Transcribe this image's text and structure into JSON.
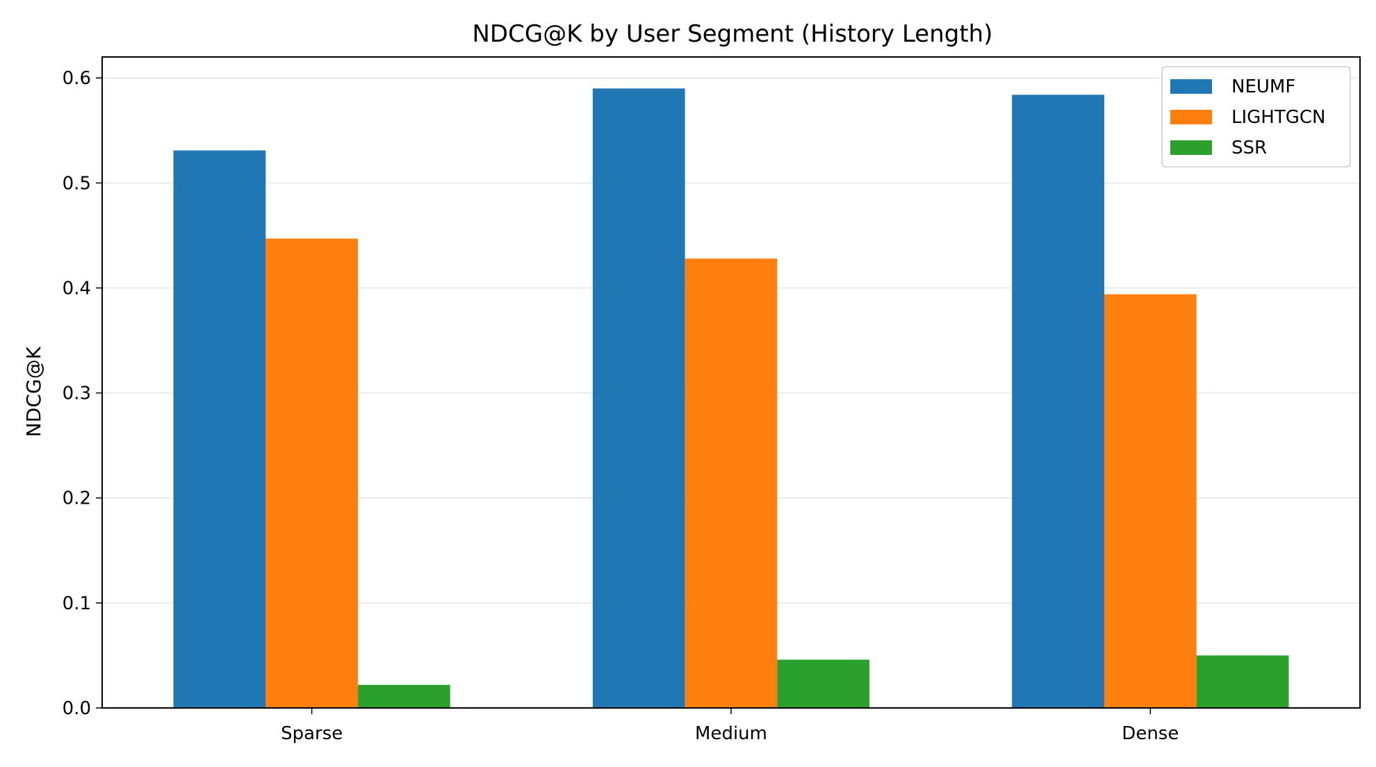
{
  "chart_data": {
    "type": "bar",
    "title": "NDCG@K by User Segment (History Length)",
    "xlabel": "",
    "ylabel": "NDCG@K",
    "categories": [
      "Sparse",
      "Medium",
      "Dense"
    ],
    "series": [
      {
        "name": "NEUMF",
        "color": "#1f77b4",
        "values": [
          0.531,
          0.59,
          0.584
        ]
      },
      {
        "name": "LIGHTGCN",
        "color": "#ff7f0e",
        "values": [
          0.447,
          0.428,
          0.394
        ]
      },
      {
        "name": "SSR",
        "color": "#2ca02c",
        "values": [
          0.022,
          0.046,
          0.05
        ]
      }
    ],
    "ylim": [
      0,
      0.62
    ],
    "yticks": [
      "0.0",
      "0.1",
      "0.2",
      "0.3",
      "0.4",
      "0.5",
      "0.6"
    ],
    "grid": "horizontal",
    "legend_position": "top-right"
  }
}
